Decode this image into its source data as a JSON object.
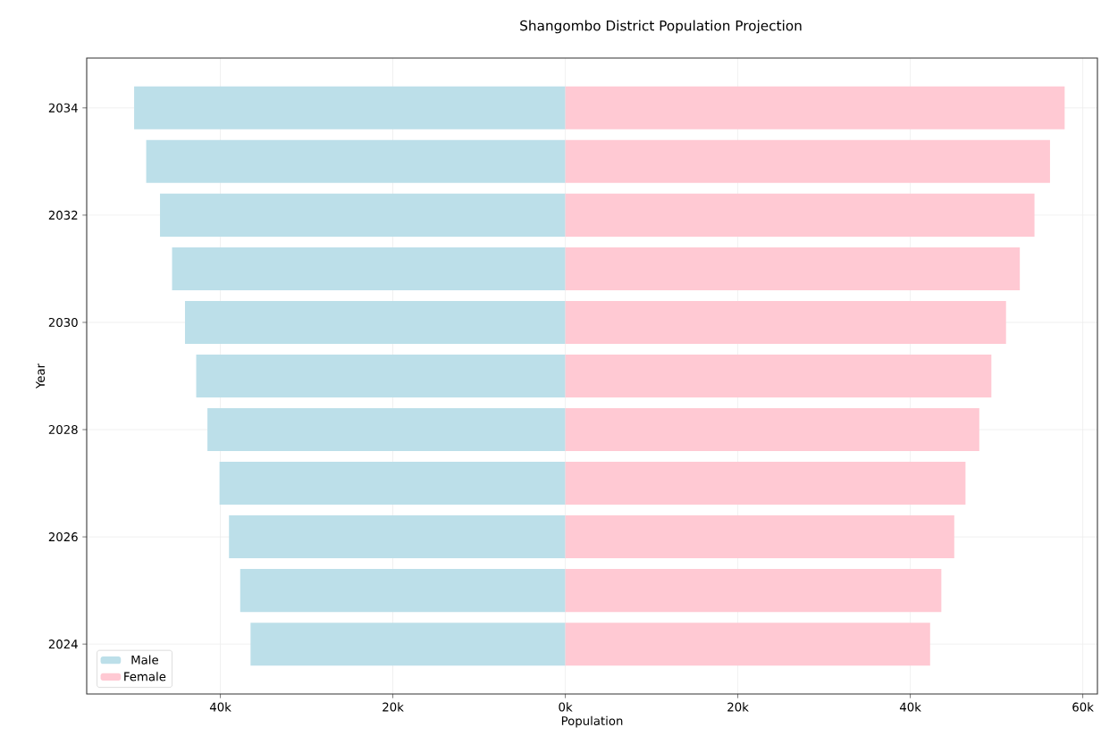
{
  "chart_data": {
    "type": "bar",
    "orientation": "horizontal",
    "title": "Shangombo District Population Projection",
    "xlabel": "Population",
    "ylabel": "Year",
    "categories": [
      "2034",
      null,
      "2032",
      null,
      "2030",
      null,
      "2028",
      null,
      "2026",
      null,
      "2024"
    ],
    "series": [
      {
        "name": "Male",
        "color": "#bcdfe9",
        "values": [
          -50000,
          -48600,
          -47000,
          -45600,
          -44100,
          -42800,
          -41500,
          -40100,
          -39000,
          -37700,
          -36500
        ]
      },
      {
        "name": "Female",
        "color": "#ffc9d3",
        "values": [
          57900,
          56200,
          54400,
          52700,
          51100,
          49400,
          48000,
          46400,
          45100,
          43600,
          42300
        ]
      }
    ],
    "xlim": [
      -55500,
      61700
    ],
    "xticks": [
      {
        "value": -40000,
        "label": "40k"
      },
      {
        "value": -20000,
        "label": "20k"
      },
      {
        "value": 0,
        "label": "0k"
      },
      {
        "value": 20000,
        "label": "20k"
      },
      {
        "value": 40000,
        "label": "40k"
      },
      {
        "value": 60000,
        "label": "60k"
      }
    ],
    "stacked": true,
    "grid": true,
    "legend": "bottom left"
  }
}
